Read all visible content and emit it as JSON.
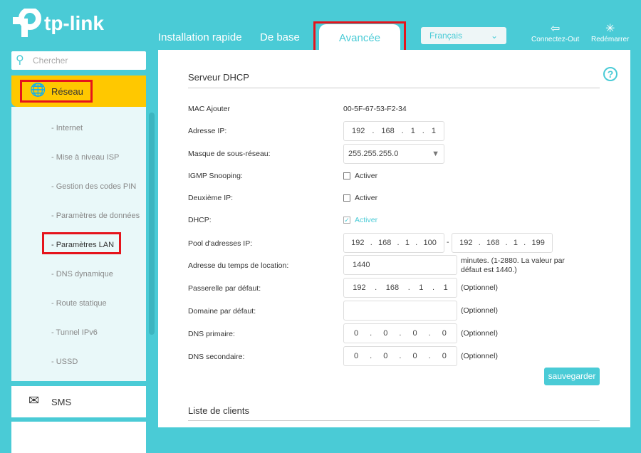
{
  "brand": "tp-link",
  "nav": {
    "tabs": [
      "Installation rapide",
      "De base",
      "Avancée"
    ],
    "language": "Français",
    "logout": "Connectez-Out",
    "reboot": "Redémarrer"
  },
  "sidebar": {
    "search_placeholder": "Chercher",
    "section": "Réseau",
    "items": [
      "- Internet",
      "- Mise à niveau ISP",
      "- Gestion des codes PIN",
      "- Paramètres de données",
      "- Paramètres LAN",
      "- DNS dynamique",
      "- Route statique",
      "- Tunnel IPv6",
      "- USSD"
    ],
    "active": "- Paramètres LAN",
    "sms": "SMS"
  },
  "main": {
    "title": "Serveur DHCP",
    "mac_label": "MAC Ajouter",
    "mac_value": "00-5F-67-53-F2-34",
    "ip_label": "Adresse IP:",
    "ip": [
      "192",
      "168",
      "1",
      "1"
    ],
    "mask_label": "Masque de sous-réseau:",
    "mask": "255.255.255.0",
    "igmp_label": "IGMP Snooping:",
    "igmp_cb": "Activer",
    "igmp_checked": false,
    "ip2_label": "Deuxième IP:",
    "ip2_cb": "Activer",
    "ip2_checked": false,
    "dhcp_label": "DHCP:",
    "dhcp_cb": "Activer",
    "dhcp_checked": true,
    "pool_label": "Pool d'adresses IP:",
    "pool_start": [
      "192",
      "168",
      "1",
      "100"
    ],
    "pool_end": [
      "192",
      "168",
      "1",
      "199"
    ],
    "pool_sep": "-",
    "lease_label": "Adresse du temps de location:",
    "lease": "1440",
    "lease_note": "minutes. (1-2880. La valeur par défaut est 1440.)",
    "gw_label": "Passerelle par défaut:",
    "gw": [
      "192",
      "168",
      "1",
      "1"
    ],
    "domain_label": "Domaine par défaut:",
    "domain": "",
    "dns1_label": "DNS primaire:",
    "dns1": [
      "0",
      "0",
      "0",
      "0"
    ],
    "dns2_label": "DNS secondaire:",
    "dns2": [
      "0",
      "0",
      "0",
      "0"
    ],
    "optional": "(Optionnel)",
    "save": "sauvegarder",
    "clients_title": "Liste de clients"
  },
  "colors": {
    "accent": "#4acbd6",
    "highlight": "#ffc800",
    "annotation": "#e5141c"
  }
}
